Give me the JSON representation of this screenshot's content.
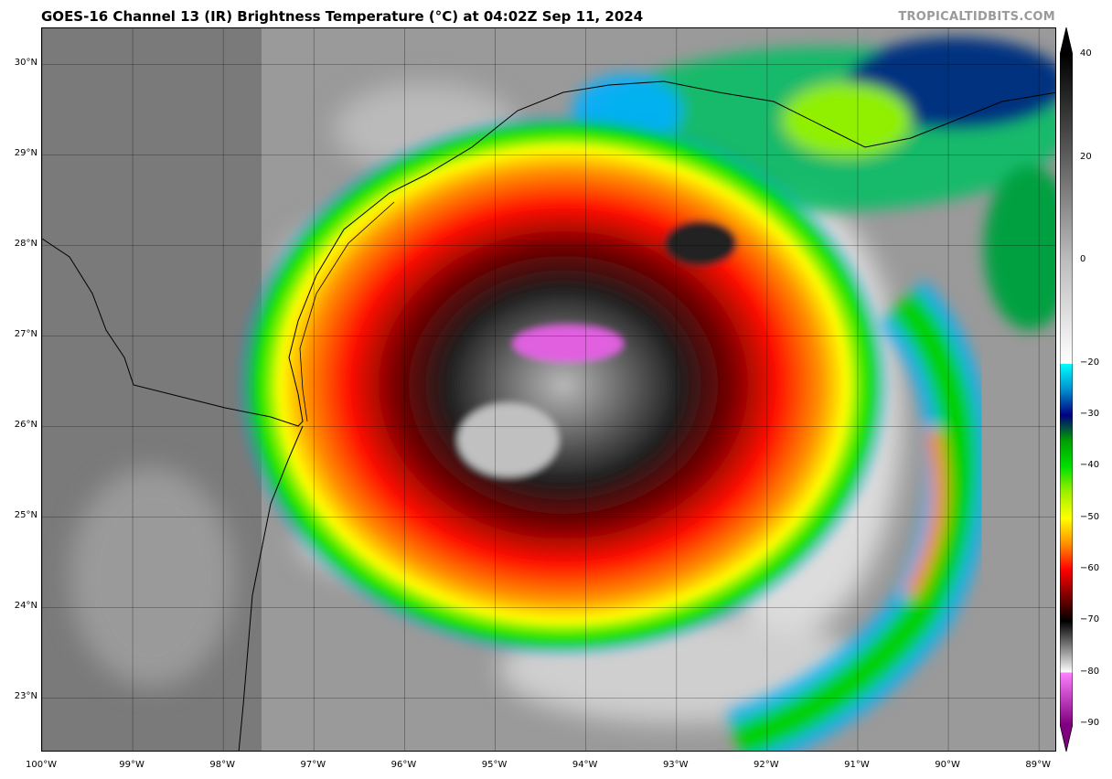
{
  "title": "GOES-16 Channel 13 (IR) Brightness Temperature (°C) at 04:02Z Sep 11, 2024",
  "credit": "TROPICALTIDBITS.COM",
  "map": {
    "lon_range": [
      -100.0,
      -88.8
    ],
    "lat_range": [
      22.4,
      30.4
    ],
    "lat_labels": [
      {
        "value": 30,
        "text": "30°N"
      },
      {
        "value": 29,
        "text": "29°N"
      },
      {
        "value": 28,
        "text": "28°N"
      },
      {
        "value": 27,
        "text": "27°N"
      },
      {
        "value": 26,
        "text": "26°N"
      },
      {
        "value": 25,
        "text": "25°N"
      },
      {
        "value": 24,
        "text": "24°N"
      },
      {
        "value": 23,
        "text": "23°N"
      }
    ],
    "lon_labels": [
      {
        "value": -100,
        "text": "100°W"
      },
      {
        "value": -99,
        "text": "99°W"
      },
      {
        "value": -98,
        "text": "98°W"
      },
      {
        "value": -97,
        "text": "97°W"
      },
      {
        "value": -96,
        "text": "96°W"
      },
      {
        "value": -95,
        "text": "95°W"
      },
      {
        "value": -94,
        "text": "94°W"
      },
      {
        "value": -93,
        "text": "93°W"
      },
      {
        "value": -92,
        "text": "92°W"
      },
      {
        "value": -91,
        "text": "91°W"
      },
      {
        "value": -90,
        "text": "90°W"
      },
      {
        "value": -89,
        "text": "89°W"
      }
    ],
    "storm_center": {
      "lon": -94.4,
      "lat": 26.5
    }
  },
  "colorbar": {
    "range": [
      -90,
      40
    ],
    "labels": [
      {
        "value": 40,
        "text": "40"
      },
      {
        "value": 20,
        "text": "20"
      },
      {
        "value": 0,
        "text": "0"
      },
      {
        "value": -20,
        "text": "−20"
      },
      {
        "value": -30,
        "text": "−30"
      },
      {
        "value": -40,
        "text": "−40"
      },
      {
        "value": -50,
        "text": "−50"
      },
      {
        "value": -60,
        "text": "−60"
      },
      {
        "value": -70,
        "text": "−70"
      },
      {
        "value": -80,
        "text": "−80"
      },
      {
        "value": -90,
        "text": "−90"
      }
    ],
    "stops": [
      {
        "value": 40,
        "color": "#000000"
      },
      {
        "value": 0,
        "color": "#bdbdbd"
      },
      {
        "value": -20,
        "color": "#ffffff"
      },
      {
        "value": -20.01,
        "color": "#00ffff"
      },
      {
        "value": -25,
        "color": "#0090d0"
      },
      {
        "value": -30,
        "color": "#000080"
      },
      {
        "value": -35,
        "color": "#00a000"
      },
      {
        "value": -40,
        "color": "#00e000"
      },
      {
        "value": -45,
        "color": "#a0f000"
      },
      {
        "value": -50,
        "color": "#ffff00"
      },
      {
        "value": -55,
        "color": "#ff9000"
      },
      {
        "value": -60,
        "color": "#ff0000"
      },
      {
        "value": -65,
        "color": "#800000"
      },
      {
        "value": -70,
        "color": "#000000"
      },
      {
        "value": -80,
        "color": "#ffffff"
      },
      {
        "value": -80.01,
        "color": "#ff80ff"
      },
      {
        "value": -90,
        "color": "#800080"
      }
    ]
  }
}
